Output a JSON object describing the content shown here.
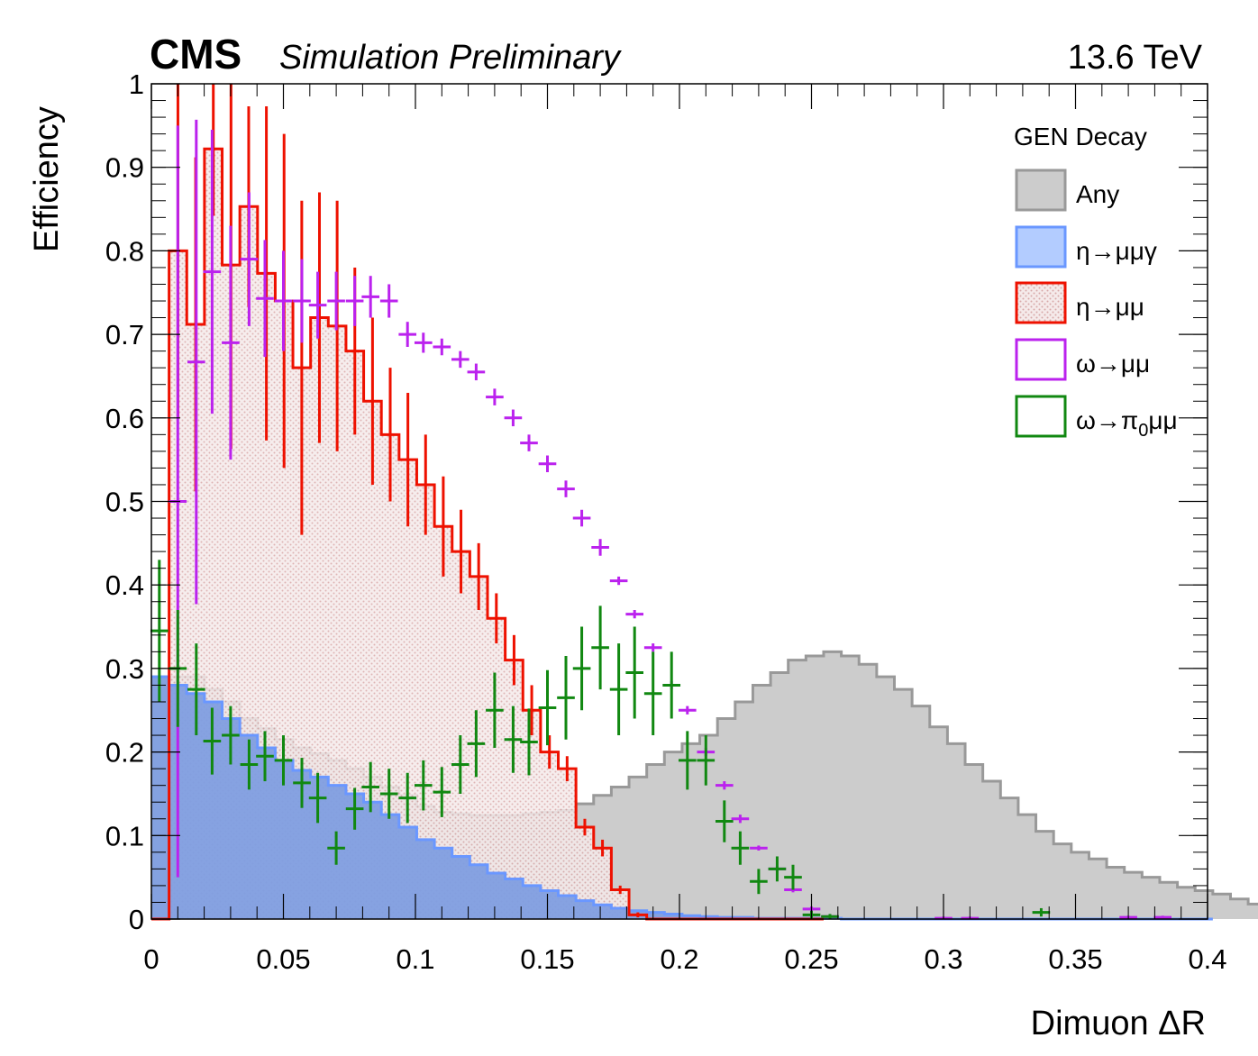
{
  "header": {
    "experiment": "CMS",
    "status": "Simulation Preliminary",
    "energy": "13.6 TeV"
  },
  "chart_data": {
    "type": "histogram",
    "xlabel": "Dimuon ΔR",
    "ylabel": "Efficiency",
    "xlim": [
      0,
      0.4
    ],
    "ylim": [
      0,
      1
    ],
    "x_ticks": [
      "0",
      "0.05",
      "0.1",
      "0.15",
      "0.2",
      "0.25",
      "0.3",
      "0.35",
      "0.4"
    ],
    "y_ticks": [
      "0",
      "0.1",
      "0.2",
      "0.3",
      "0.4",
      "0.5",
      "0.6",
      "0.7",
      "0.8",
      "0.9",
      "1"
    ],
    "bin_width": 0.0067,
    "legend": {
      "title": "GEN Decay",
      "placement": "top-right",
      "entries": [
        {
          "label": "Any",
          "key": "any"
        },
        {
          "label": "η→μμγ",
          "key": "eta_mmg"
        },
        {
          "label": "η→μμ",
          "key": "eta_mm"
        },
        {
          "label": "ω→μμ",
          "key": "omega_mm"
        },
        {
          "label_main": "ω→π",
          "label_sub": "0",
          "label_tail": "μμ",
          "key": "omega_pi0mm"
        }
      ]
    },
    "colors": {
      "any_fill": "#cccccc",
      "any_line": "#999999",
      "eta_mmg_fill": "#7f9ee0",
      "eta_mmg_line": "#6a97ff",
      "eta_mm_line": "#ee1100",
      "eta_mm_fill": "#ead6d6",
      "omega_mm": "#bb22ee",
      "omega_pi0mm": "#118811"
    },
    "series": [
      {
        "name": "Any",
        "key": "any",
        "style": "filled-step",
        "values": [
          0.29,
          0.29,
          0.29,
          0.275,
          0.26,
          0.24,
          0.228,
          0.215,
          0.205,
          0.198,
          0.19,
          0.18,
          0.17,
          0.158,
          0.148,
          0.135,
          0.128,
          0.126,
          0.124,
          0.124,
          0.124,
          0.126,
          0.128,
          0.13,
          0.138,
          0.148,
          0.158,
          0.17,
          0.185,
          0.2,
          0.21,
          0.22,
          0.24,
          0.26,
          0.28,
          0.295,
          0.31,
          0.315,
          0.32,
          0.315,
          0.305,
          0.29,
          0.275,
          0.255,
          0.23,
          0.21,
          0.185,
          0.165,
          0.145,
          0.125,
          0.105,
          0.09,
          0.08,
          0.072,
          0.062,
          0.056,
          0.05,
          0.044,
          0.038,
          0.034,
          0.03,
          0.024,
          0.018,
          0.013,
          0.01,
          0.008,
          0.006,
          0.005,
          0.004,
          0.004,
          0.004,
          0.004,
          0.004,
          0.003,
          0.003,
          0.003,
          0.002,
          0.002,
          0.002,
          0.002
        ]
      },
      {
        "name": "η→μμγ",
        "key": "eta_mmg",
        "style": "filled-step",
        "values": [
          0.29,
          0.28,
          0.27,
          0.26,
          0.24,
          0.22,
          0.205,
          0.19,
          0.178,
          0.17,
          0.16,
          0.15,
          0.14,
          0.125,
          0.11,
          0.095,
          0.085,
          0.075,
          0.065,
          0.055,
          0.048,
          0.04,
          0.034,
          0.028,
          0.022,
          0.017,
          0.013,
          0.01,
          0.008,
          0.006,
          0.004,
          0.003,
          0.002,
          0.002,
          0.001,
          0.001,
          0.001,
          0.001,
          0.001,
          0,
          0,
          0,
          0,
          0,
          0,
          0,
          0,
          0,
          0,
          0,
          0,
          0,
          0,
          0,
          0,
          0,
          0,
          0,
          0,
          0
        ]
      },
      {
        "name": "η→μμ",
        "key": "eta_mm",
        "style": "hatched-step",
        "values": [
          0,
          0.8,
          0.712,
          0.922,
          0.783,
          0.853,
          0.773,
          0.74,
          0.66,
          0.72,
          0.71,
          0.68,
          0.62,
          0.58,
          0.55,
          0.52,
          0.47,
          0.44,
          0.41,
          0.36,
          0.31,
          0.25,
          0.2,
          0.18,
          0.11,
          0.085,
          0.035,
          0.005,
          0,
          0,
          0,
          0,
          0,
          0,
          0,
          0,
          0,
          0
        ],
        "errors": [
          0,
          0.2,
          0.2,
          0.08,
          0.22,
          0.12,
          0.2,
          0.2,
          0.2,
          0.15,
          0.15,
          0.1,
          0.1,
          0.08,
          0.08,
          0.06,
          0.06,
          0.05,
          0.04,
          0.03,
          0.03,
          0.03,
          0.02,
          0.015,
          0.01,
          0.01,
          0.005,
          0.003,
          0,
          0,
          0,
          0,
          0,
          0,
          0,
          0,
          0,
          0
        ]
      },
      {
        "name": "ω→μμ",
        "key": "omega_mm",
        "style": "errorbars",
        "x": [
          0.01,
          0.017,
          0.023,
          0.03,
          0.037,
          0.043,
          0.05,
          0.057,
          0.063,
          0.07,
          0.077,
          0.083,
          0.09,
          0.097,
          0.103,
          0.11,
          0.117,
          0.123,
          0.13,
          0.137,
          0.143,
          0.15,
          0.157,
          0.163,
          0.17,
          0.177,
          0.183,
          0.19,
          0.197,
          0.203,
          0.21,
          0.217,
          0.223,
          0.23,
          0.237,
          0.243,
          0.25,
          0.257,
          0.3,
          0.31,
          0.37,
          0.383
        ],
        "values": [
          0.5,
          0.667,
          0.775,
          0.69,
          0.79,
          0.743,
          0.74,
          0.74,
          0.735,
          0.74,
          0.74,
          0.745,
          0.74,
          0.7,
          0.69,
          0.685,
          0.67,
          0.655,
          0.625,
          0.6,
          0.57,
          0.545,
          0.515,
          0.48,
          0.445,
          0.405,
          0.365,
          0.325,
          0.28,
          0.25,
          0.2,
          0.16,
          0.12,
          0.085,
          0.06,
          0.035,
          0.012,
          0.003,
          0.001,
          0.001,
          0.002,
          0.002
        ],
        "errors": [
          0.45,
          0.29,
          0.17,
          0.14,
          0.08,
          0.07,
          0.06,
          0.05,
          0.04,
          0.035,
          0.03,
          0.025,
          0.02,
          0.015,
          0.012,
          0.01,
          0.01,
          0.01,
          0.01,
          0.01,
          0.01,
          0.01,
          0.01,
          0.01,
          0.01,
          0.005,
          0.005,
          0.005,
          0.005,
          0.005,
          0.005,
          0.005,
          0.005,
          0.003,
          0.003,
          0.003,
          0.003,
          0.003,
          0.002,
          0.002,
          0.002,
          0.002
        ]
      },
      {
        "name": "ω→π₀μμ",
        "key": "omega_pi0mm",
        "style": "errorbars",
        "x": [
          0.003,
          0.01,
          0.017,
          0.023,
          0.03,
          0.037,
          0.043,
          0.05,
          0.057,
          0.063,
          0.07,
          0.077,
          0.083,
          0.09,
          0.097,
          0.103,
          0.11,
          0.117,
          0.123,
          0.13,
          0.137,
          0.143,
          0.15,
          0.157,
          0.163,
          0.17,
          0.177,
          0.183,
          0.19,
          0.197,
          0.203,
          0.21,
          0.217,
          0.223,
          0.23,
          0.237,
          0.243,
          0.25,
          0.257,
          0.337
        ],
        "values": [
          0.345,
          0.3,
          0.275,
          0.213,
          0.22,
          0.185,
          0.195,
          0.19,
          0.163,
          0.145,
          0.085,
          0.132,
          0.158,
          0.15,
          0.145,
          0.16,
          0.152,
          0.185,
          0.21,
          0.25,
          0.215,
          0.212,
          0.253,
          0.265,
          0.3,
          0.325,
          0.275,
          0.295,
          0.27,
          0.28,
          0.19,
          0.19,
          0.117,
          0.085,
          0.045,
          0.06,
          0.05,
          0.005,
          0.003,
          0.008
        ],
        "errors": [
          0.085,
          0.07,
          0.055,
          0.04,
          0.035,
          0.03,
          0.03,
          0.03,
          0.03,
          0.03,
          0.02,
          0.025,
          0.03,
          0.03,
          0.03,
          0.03,
          0.03,
          0.035,
          0.04,
          0.045,
          0.04,
          0.04,
          0.045,
          0.05,
          0.05,
          0.05,
          0.055,
          0.055,
          0.05,
          0.04,
          0.035,
          0.03,
          0.025,
          0.02,
          0.015,
          0.015,
          0.015,
          0.005,
          0.003,
          0.005
        ]
      }
    ]
  }
}
